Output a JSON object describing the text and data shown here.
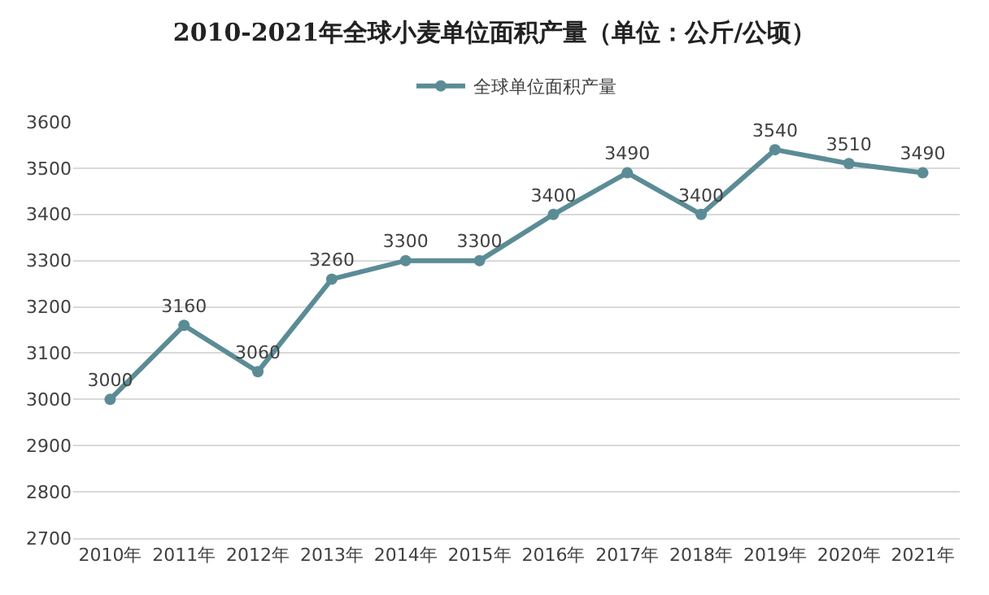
{
  "chart_data": {
    "type": "line",
    "title": "2010-2021年全球小麦单位面积产量（单位：公斤/公顷）",
    "categories": [
      "2010年",
      "2011年",
      "2012年",
      "2013年",
      "2014年",
      "2015年",
      "2016年",
      "2017年",
      "2018年",
      "2019年",
      "2020年",
      "2021年"
    ],
    "series": [
      {
        "name": "全球单位面积产量",
        "color": "#5b8c96",
        "values": [
          3000,
          3160,
          3060,
          3260,
          3300,
          3300,
          3400,
          3490,
          3400,
          3540,
          3510,
          3490
        ]
      }
    ],
    "ylim": [
      2700,
      3600
    ],
    "yticks": [
      2700,
      2800,
      2900,
      3000,
      3100,
      3200,
      3300,
      3400,
      3500,
      3600
    ],
    "grid": "y",
    "legend": "top",
    "marker": "circle",
    "line_style": "solid",
    "data_labels": true
  }
}
